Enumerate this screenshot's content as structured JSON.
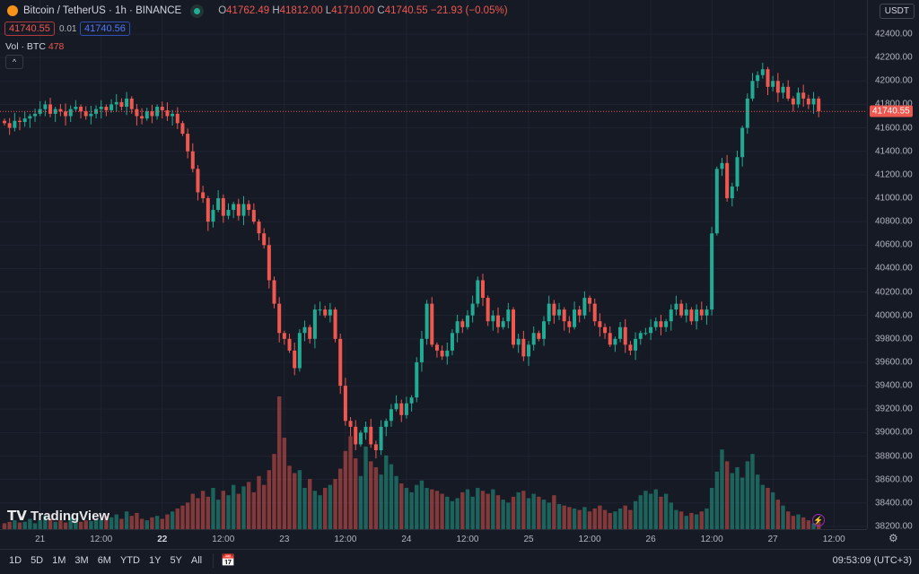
{
  "header": {
    "symbol": "Bitcoin / TetherUS · 1h · BINANCE",
    "o_label": "O",
    "o": "41762.49",
    "h_label": "H",
    "h": "41812.00",
    "l_label": "L",
    "l": "41710.00",
    "c_label": "C",
    "c": "41740.55",
    "change": "−21.93 (−0.05%)",
    "bid": "41740.55",
    "spread": "0.01",
    "ask": "41740.56",
    "vol_label": "Vol · BTC",
    "vol_value": "478",
    "collapse_icon": "chevron-up-icon"
  },
  "currency": "USDT",
  "last_price_label": "41740.55",
  "logo": "TradingView",
  "bottom": {
    "ranges": [
      "1D",
      "5D",
      "1M",
      "3M",
      "6M",
      "YTD",
      "1Y",
      "5Y",
      "All"
    ],
    "clock": "09:53:09 (UTC+3)"
  },
  "colors": {
    "up": "#22ab94",
    "down": "#f0574f",
    "bg": "#161a25",
    "grid": "#1f2330"
  },
  "chart_data": {
    "type": "candlestick",
    "title": "Bitcoin / TetherUS · 1h · BINANCE",
    "interval": "1h",
    "ylim": [
      38200,
      42400
    ],
    "yticks": [
      42400,
      42200,
      42000,
      41800,
      41600,
      41400,
      41200,
      41000,
      40800,
      40600,
      40400,
      40200,
      40000,
      39800,
      39600,
      39400,
      39200,
      39000,
      38800,
      38600,
      38400,
      38200
    ],
    "ytick_labels": [
      "42400.00",
      "42200.00",
      "42000.00",
      "41800.00",
      "41600.00",
      "41400.00",
      "41200.00",
      "41000.00",
      "40800.00",
      "40600.00",
      "40400.00",
      "40200.00",
      "40000.00",
      "39800.00",
      "39600.00",
      "39400.00",
      "39200.00",
      "39000.00",
      "38800.00",
      "38600.00",
      "38400.00",
      "38200.00"
    ],
    "xticks": [
      {
        "label": "21",
        "hour": 7,
        "bold": false
      },
      {
        "label": "12:00",
        "hour": 19,
        "bold": false
      },
      {
        "label": "22",
        "hour": 31,
        "bold": true
      },
      {
        "label": "12:00",
        "hour": 43,
        "bold": false
      },
      {
        "label": "23",
        "hour": 55,
        "bold": false
      },
      {
        "label": "12:00",
        "hour": 67,
        "bold": false
      },
      {
        "label": "24",
        "hour": 79,
        "bold": false
      },
      {
        "label": "12:00",
        "hour": 91,
        "bold": false
      },
      {
        "label": "25",
        "hour": 103,
        "bold": false
      },
      {
        "label": "12:00",
        "hour": 115,
        "bold": false
      },
      {
        "label": "26",
        "hour": 127,
        "bold": false
      },
      {
        "label": "12:00",
        "hour": 139,
        "bold": false
      },
      {
        "label": "27",
        "hour": 151,
        "bold": false
      },
      {
        "label": "12:00",
        "hour": 163,
        "bold": false
      }
    ],
    "first_open": 41660,
    "closes": [
      41640,
      41600,
      41660,
      41650,
      41680,
      41700,
      41720,
      41760,
      41800,
      41720,
      41760,
      41740,
      41700,
      41760,
      41780,
      41740,
      41700,
      41720,
      41760,
      41780,
      41750,
      41800,
      41820,
      41780,
      41850,
      41760,
      41700,
      41680,
      41740,
      41700,
      41780,
      41750,
      41700,
      41720,
      41640,
      41550,
      41400,
      41250,
      41050,
      41000,
      40800,
      40900,
      41000,
      40850,
      40900,
      40950,
      40850,
      40950,
      40900,
      40800,
      40700,
      40600,
      40300,
      40100,
      39850,
      39800,
      39700,
      39550,
      39850,
      39900,
      39800,
      40050,
      40050,
      40000,
      40050,
      39800,
      39400,
      39100,
      39050,
      38900,
      39000,
      39050,
      38900,
      38850,
      39050,
      39100,
      39200,
      39250,
      39150,
      39250,
      39300,
      39600,
      39800,
      40100,
      39750,
      39700,
      39650,
      39700,
      39850,
      39950,
      39900,
      40000,
      40100,
      40300,
      40150,
      39950,
      40000,
      39900,
      39950,
      40050,
      39750,
      39800,
      39650,
      39750,
      39850,
      39800,
      39950,
      40100,
      40000,
      40050,
      39950,
      39900,
      40050,
      40000,
      40150,
      40100,
      39950,
      39900,
      39850,
      39750,
      39800,
      39900,
      39750,
      39700,
      39800,
      39850,
      39850,
      39900,
      39950,
      39900,
      39950,
      40050,
      40100,
      40000,
      40050,
      39950,
      40050,
      40000,
      40050,
      40700,
      41250,
      41300,
      41000,
      41100,
      41350,
      41600,
      41850,
      42000,
      42050,
      42100,
      41950,
      42000,
      41900,
      41950,
      41850,
      41800,
      41900,
      41850,
      41800,
      41850,
      41740.55
    ],
    "volumes": [
      400,
      500,
      600,
      450,
      500,
      700,
      400,
      600,
      900,
      700,
      500,
      600,
      450,
      800,
      700,
      500,
      600,
      550,
      700,
      650,
      900,
      800,
      1000,
      700,
      1200,
      900,
      1100,
      700,
      600,
      800,
      900,
      700,
      1000,
      1200,
      1400,
      1600,
      1800,
      2400,
      2100,
      2600,
      2200,
      2800,
      2000,
      2600,
      2300,
      3000,
      2400,
      2900,
      3200,
      2500,
      3600,
      3000,
      4000,
      5100,
      9000,
      6200,
      4300,
      3800,
      4000,
      2800,
      3400,
      2600,
      2300,
      2800,
      3000,
      3400,
      4100,
      5300,
      6300,
      4800,
      3600,
      5600,
      4600,
      4200,
      3700,
      5000,
      4400,
      3600,
      3100,
      2800,
      2500,
      3000,
      3300,
      2800,
      2700,
      2600,
      2400,
      2200,
      1900,
      2100,
      2500,
      2700,
      2200,
      2800,
      2600,
      2400,
      2700,
      2300,
      2000,
      1800,
      2200,
      2500,
      2600,
      2100,
      2400,
      2200,
      2000,
      1800,
      2300,
      1700,
      1600,
      1500,
      1400,
      1300,
      1500,
      1200,
      1400,
      1600,
      1300,
      1100,
      1200,
      1400,
      1600,
      1300,
      1900,
      2300,
      2600,
      2400,
      2700,
      2200,
      2400,
      1800,
      1300,
      1200,
      900,
      1100,
      1000,
      1200,
      1400,
      2800,
      3900,
      5400,
      4600,
      3800,
      4200,
      3500,
      4600,
      5100,
      3700,
      3000,
      2800,
      2500,
      2000,
      1600,
      1200,
      900,
      1000,
      800,
      600,
      400,
      478
    ],
    "last_price": 41740.55
  }
}
